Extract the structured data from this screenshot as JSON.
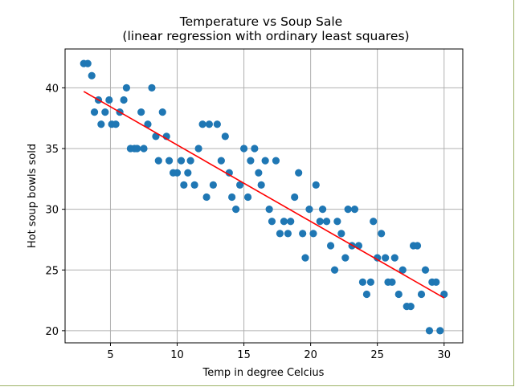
{
  "chart_data": {
    "type": "scatter",
    "title": "Temperature vs Soup Sale",
    "subtitle": "(linear regression with ordinary least squares)",
    "xlabel": "Temp in degree Celcius",
    "ylabel": "Hot soup bowls sold",
    "xlim": [
      1.6,
      31.4
    ],
    "ylim": [
      19,
      43.2
    ],
    "xticks": [
      5,
      10,
      15,
      20,
      25,
      30
    ],
    "yticks": [
      20,
      25,
      30,
      35,
      40
    ],
    "grid": true,
    "colors": {
      "points": "#1f77b4",
      "regression": "#ff0000",
      "grid": "#b0b0b0"
    },
    "points": [
      [
        3.0,
        42
      ],
      [
        3.3,
        42
      ],
      [
        3.6,
        41
      ],
      [
        3.8,
        38
      ],
      [
        4.1,
        39
      ],
      [
        4.3,
        37
      ],
      [
        4.6,
        38
      ],
      [
        4.9,
        39
      ],
      [
        5.1,
        37
      ],
      [
        5.4,
        37
      ],
      [
        5.7,
        38
      ],
      [
        6.0,
        39
      ],
      [
        6.2,
        40
      ],
      [
        6.5,
        35
      ],
      [
        6.8,
        35
      ],
      [
        7.0,
        35
      ],
      [
        7.3,
        38
      ],
      [
        7.5,
        35
      ],
      [
        7.8,
        37
      ],
      [
        8.1,
        40
      ],
      [
        8.4,
        36
      ],
      [
        8.6,
        34
      ],
      [
        8.9,
        38
      ],
      [
        9.2,
        36
      ],
      [
        9.4,
        34
      ],
      [
        9.7,
        33
      ],
      [
        10.0,
        33
      ],
      [
        10.3,
        34
      ],
      [
        10.5,
        32
      ],
      [
        10.8,
        33
      ],
      [
        11.0,
        34
      ],
      [
        11.3,
        32
      ],
      [
        11.6,
        35
      ],
      [
        11.9,
        37
      ],
      [
        12.2,
        31
      ],
      [
        12.4,
        37
      ],
      [
        12.7,
        32
      ],
      [
        13.0,
        37
      ],
      [
        13.3,
        34
      ],
      [
        13.6,
        36
      ],
      [
        13.9,
        33
      ],
      [
        14.1,
        31
      ],
      [
        14.4,
        30
      ],
      [
        14.7,
        32
      ],
      [
        15.0,
        35
      ],
      [
        15.3,
        31
      ],
      [
        15.5,
        34
      ],
      [
        15.8,
        35
      ],
      [
        16.1,
        33
      ],
      [
        16.3,
        32
      ],
      [
        16.6,
        34
      ],
      [
        16.9,
        30
      ],
      [
        17.1,
        29
      ],
      [
        17.4,
        34
      ],
      [
        17.7,
        28
      ],
      [
        18.0,
        29
      ],
      [
        18.3,
        28
      ],
      [
        18.5,
        29
      ],
      [
        18.8,
        31
      ],
      [
        19.1,
        33
      ],
      [
        19.4,
        28
      ],
      [
        19.6,
        26
      ],
      [
        19.9,
        30
      ],
      [
        20.2,
        28
      ],
      [
        20.4,
        32
      ],
      [
        20.7,
        29
      ],
      [
        20.9,
        30
      ],
      [
        21.2,
        29
      ],
      [
        21.5,
        27
      ],
      [
        21.8,
        25
      ],
      [
        22.0,
        29
      ],
      [
        22.3,
        28
      ],
      [
        22.6,
        26
      ],
      [
        22.8,
        30
      ],
      [
        23.1,
        27
      ],
      [
        23.3,
        30
      ],
      [
        23.6,
        27
      ],
      [
        23.9,
        24
      ],
      [
        24.2,
        23
      ],
      [
        24.5,
        24
      ],
      [
        24.7,
        29
      ],
      [
        25.0,
        26
      ],
      [
        25.3,
        28
      ],
      [
        25.6,
        26
      ],
      [
        25.8,
        24
      ],
      [
        26.1,
        24
      ],
      [
        26.3,
        26
      ],
      [
        26.6,
        23
      ],
      [
        26.9,
        25
      ],
      [
        27.2,
        22
      ],
      [
        27.5,
        22
      ],
      [
        27.7,
        27
      ],
      [
        28.0,
        27
      ],
      [
        28.3,
        23
      ],
      [
        28.6,
        25
      ],
      [
        28.9,
        20
      ],
      [
        29.1,
        24
      ],
      [
        29.4,
        24
      ],
      [
        29.7,
        20
      ],
      [
        30.0,
        23
      ]
    ],
    "regression_line": {
      "x": [
        3.0,
        30.0
      ],
      "y": [
        39.7,
        22.7
      ]
    }
  }
}
